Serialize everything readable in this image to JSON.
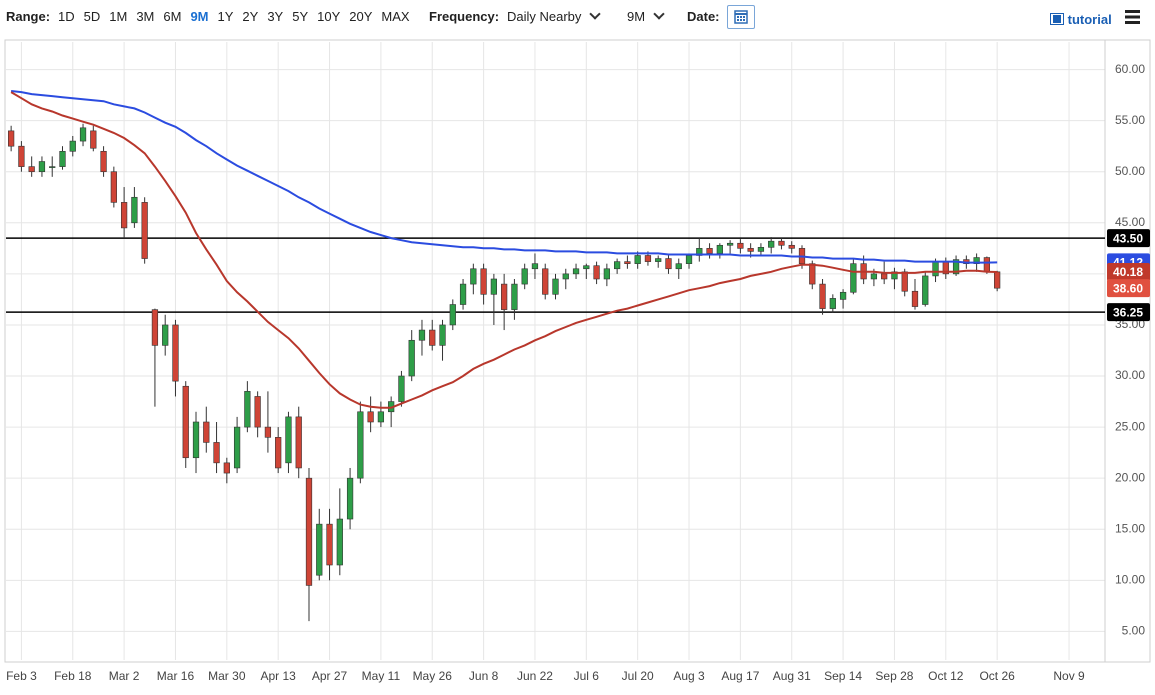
{
  "toolbar": {
    "range_label": "Range:",
    "ranges": [
      "1D",
      "5D",
      "1M",
      "3M",
      "6M",
      "9M",
      "1Y",
      "2Y",
      "3Y",
      "5Y",
      "10Y",
      "20Y",
      "MAX"
    ],
    "active_range": "9M",
    "frequency_label": "Frequency:",
    "frequency": "Daily Nearby",
    "period": "9M",
    "date_label": "Date:",
    "tutorial": "tutorial"
  },
  "chart_data": {
    "type": "candlestick",
    "categories": [
      null,
      "Feb 3",
      null,
      null,
      null,
      null,
      "Feb 18",
      null,
      null,
      null,
      null,
      "Mar 2",
      null,
      null,
      null,
      null,
      "Mar 16",
      null,
      null,
      null,
      null,
      "Mar 30",
      null,
      null,
      null,
      null,
      "Apr 13",
      null,
      null,
      null,
      null,
      "Apr 27",
      null,
      null,
      null,
      null,
      "May 11",
      null,
      null,
      null,
      null,
      "May 26",
      null,
      null,
      null,
      null,
      "Jun 8",
      null,
      null,
      null,
      null,
      "Jun 22",
      null,
      null,
      null,
      null,
      "Jul 6",
      null,
      null,
      null,
      null,
      "Jul 20",
      null,
      null,
      null,
      null,
      "Aug 3",
      null,
      null,
      null,
      null,
      "Aug 17",
      null,
      null,
      null,
      null,
      "Aug 31",
      null,
      null,
      null,
      null,
      "Sep 14",
      null,
      null,
      null,
      null,
      "Sep 28",
      null,
      null,
      null,
      null,
      "Oct 12",
      null,
      null,
      null,
      null,
      "Oct 26",
      null,
      null,
      null,
      null,
      null,
      null,
      "Nov 9",
      null,
      null,
      null
    ],
    "candles": {
      "up_color": "#2e9e48",
      "down_color": "#cf4436",
      "open": [
        54,
        52.5,
        50.5,
        50,
        50.5,
        50.5,
        52,
        53,
        54,
        52,
        50,
        47,
        45,
        47,
        36.5,
        33,
        35,
        29,
        22,
        25.5,
        23.5,
        21.5,
        21,
        25,
        28,
        25,
        24,
        21.5,
        26,
        20,
        10.5,
        15.5,
        11.5,
        16,
        20,
        26.5,
        25.5,
        26.5,
        27.5,
        30,
        33.5,
        34.5,
        33,
        35,
        37,
        39,
        40.5,
        38,
        39,
        36.5,
        39,
        40.5,
        40.5,
        38,
        39.5,
        40,
        40.5,
        40.8,
        39.5,
        40.5,
        41.2,
        41,
        41.8,
        41.2,
        41.5,
        40.5,
        41,
        41.8,
        42.5,
        42,
        42.8,
        43,
        42.5,
        42.2,
        42.6,
        43.2,
        42.8,
        42.5,
        41,
        39,
        36.6,
        37.5,
        38.2,
        41,
        39.5,
        40,
        39.5,
        40.2,
        38.3,
        37,
        39.8,
        41.2,
        40,
        41.4,
        41,
        41.6,
        40.2,
        null,
        null,
        null,
        null,
        null,
        null,
        null,
        null,
        null,
        null
      ],
      "high": [
        54.5,
        53,
        51.5,
        51.5,
        51.5,
        52.5,
        53.5,
        54.7,
        54.5,
        52.5,
        50.5,
        48.5,
        48.5,
        47.5,
        36.6,
        36,
        35.5,
        29.5,
        26.5,
        27,
        25.5,
        22,
        26,
        29.5,
        28.5,
        28.5,
        25,
        26.5,
        27,
        21,
        17,
        17,
        19,
        21,
        27.5,
        28,
        27.5,
        28,
        30.5,
        34.5,
        35.5,
        35.5,
        35.5,
        37.5,
        39.5,
        41,
        41,
        40,
        40,
        39.5,
        41,
        42,
        41,
        40,
        40.5,
        41,
        41,
        41.2,
        41,
        41.5,
        41.8,
        42.2,
        42.2,
        41.8,
        41.8,
        41.5,
        42,
        43.5,
        43,
        43,
        43.3,
        43.4,
        43,
        43,
        43.6,
        43.5,
        43.2,
        42.8,
        41.3,
        39.5,
        38,
        38.5,
        41.5,
        41.8,
        40.5,
        41.2,
        40.6,
        40.5,
        39.5,
        40.2,
        41.5,
        41.6,
        41.8,
        41.8,
        42,
        41.7,
        40.3,
        null,
        null,
        null,
        null,
        null,
        null,
        null,
        null,
        null,
        null
      ],
      "low": [
        52,
        50,
        49.5,
        49.5,
        49.5,
        50.2,
        51.5,
        52.5,
        52,
        49.5,
        46.5,
        43.5,
        44.5,
        41,
        27,
        32,
        28,
        21,
        20.5,
        22.5,
        20.5,
        19.5,
        20.5,
        24.5,
        24,
        22.5,
        20.5,
        20.5,
        20,
        6,
        10,
        10,
        10.5,
        15,
        19.5,
        24.5,
        25,
        25,
        27,
        29.5,
        32,
        32.5,
        31.5,
        34.5,
        36.5,
        38,
        37,
        35,
        34.5,
        35.5,
        38.5,
        39.5,
        37.5,
        37.5,
        38.5,
        39.5,
        39.5,
        39,
        38.8,
        40,
        40.5,
        40.5,
        40.8,
        40.6,
        40,
        39.5,
        40.5,
        41.2,
        41.5,
        41.5,
        42,
        42,
        41.6,
        41.8,
        42,
        42.4,
        42,
        40.5,
        38.5,
        36,
        36.2,
        36.6,
        38,
        39,
        38.8,
        39,
        38.5,
        37.8,
        36.5,
        36.8,
        39.2,
        39.5,
        39.8,
        40.5,
        40.2,
        40,
        38.3,
        null,
        null,
        null,
        null,
        null,
        null,
        null,
        null,
        null,
        null
      ],
      "close": [
        52.5,
        50.5,
        50,
        51,
        50.5,
        52,
        53,
        54.3,
        52.3,
        50,
        47,
        44.5,
        47.5,
        41.5,
        33,
        35,
        29.5,
        22,
        25.5,
        23.5,
        21.5,
        20.5,
        25,
        28.5,
        25,
        24,
        21,
        26,
        21,
        9.5,
        15.5,
        11.5,
        16,
        20,
        26.5,
        25.5,
        26.5,
        27.5,
        30,
        33.5,
        34.5,
        33,
        35,
        37,
        39,
        40.5,
        38,
        39.5,
        36.5,
        39,
        40.5,
        41,
        38,
        39.5,
        40,
        40.5,
        40.8,
        39.5,
        40.5,
        41.2,
        41,
        41.8,
        41.2,
        41.5,
        40.5,
        41,
        41.8,
        42.5,
        42,
        42.8,
        43,
        42.5,
        42.2,
        42.6,
        43.2,
        42.8,
        42.5,
        41,
        39,
        36.6,
        37.6,
        38.2,
        41,
        39.5,
        40,
        39.5,
        40.2,
        38.3,
        36.8,
        39.8,
        41.2,
        40,
        41.4,
        41,
        41.6,
        40.2,
        38.6,
        null,
        null,
        null,
        null,
        null,
        null,
        null,
        null,
        null,
        null
      ]
    },
    "series": [
      {
        "type": "line",
        "color": "#2b4ce0",
        "values": [
          57.9,
          57.8,
          57.6,
          57.5,
          57.4,
          57.3,
          57.2,
          57.1,
          57,
          56.9,
          56.6,
          56.4,
          56.2,
          55.8,
          55.3,
          54.8,
          54.4,
          53.8,
          53.1,
          52.5,
          51.8,
          51.2,
          50.6,
          50.1,
          49.6,
          49.1,
          48.6,
          48.1,
          47.5,
          47,
          46.4,
          45.9,
          45.4,
          44.9,
          44.5,
          44.1,
          43.8,
          43.5,
          43.3,
          43.1,
          43,
          42.9,
          42.8,
          42.7,
          42.6,
          42.6,
          42.5,
          42.5,
          42.4,
          42.4,
          42.3,
          42.3,
          42.3,
          42.2,
          42.2,
          42.2,
          42.1,
          42.1,
          42.1,
          42,
          42,
          42,
          42,
          42,
          41.9,
          41.9,
          41.9,
          41.9,
          41.9,
          41.9,
          41.9,
          41.8,
          41.8,
          41.8,
          41.8,
          41.8,
          41.7,
          41.7,
          41.6,
          41.6,
          41.5,
          41.5,
          41.5,
          41.4,
          41.4,
          41.3,
          41.3,
          41.3,
          41.2,
          41.2,
          41.2,
          41.2,
          41.2,
          41.1,
          41.1,
          41.1,
          41.12,
          null,
          null,
          null,
          null,
          null,
          null,
          null,
          null,
          null,
          null
        ]
      },
      {
        "type": "line",
        "color": "#b8372c",
        "values": [
          57.8,
          57.2,
          56.6,
          56.2,
          55.9,
          55.5,
          55.2,
          54.9,
          54.6,
          54.2,
          53.8,
          53.3,
          52.6,
          51.8,
          50.5,
          49.1,
          47.6,
          46,
          44,
          42.4,
          40.9,
          39.3,
          38.2,
          37.3,
          36.3,
          35.3,
          34.5,
          33.7,
          32.7,
          31.5,
          30.3,
          29.2,
          28.3,
          27.7,
          27.2,
          27,
          26.9,
          26.9,
          27.3,
          27.7,
          28.1,
          28.6,
          29,
          29.4,
          30,
          30.7,
          31.2,
          31.6,
          32.1,
          32.6,
          33,
          33.5,
          33.9,
          34.4,
          34.8,
          35.2,
          35.5,
          35.8,
          36.1,
          36.4,
          36.6,
          36.9,
          37.2,
          37.5,
          37.8,
          38.1,
          38.4,
          38.6,
          38.8,
          39.1,
          39.3,
          39.5,
          39.8,
          40,
          40.2,
          40.5,
          40.7,
          40.9,
          40.9,
          40.8,
          40.6,
          40.4,
          40.2,
          40.2,
          40.2,
          40.1,
          40.1,
          40.1,
          40.1,
          40.2,
          40.2,
          40.2,
          40.2,
          40.3,
          40.3,
          40.2,
          40.18,
          null,
          null,
          null,
          null,
          null,
          null,
          null,
          null,
          null,
          null
        ]
      }
    ],
    "levels": [
      {
        "value": 43.5,
        "label": "43.50"
      },
      {
        "value": 36.25,
        "label": "36.25"
      }
    ],
    "level_color": "#000000",
    "last_tags": [
      {
        "value": 41.12,
        "label": "41.12",
        "color": "#2b4ce0"
      },
      {
        "value": 40.18,
        "label": "40.18",
        "color": "#c0392b"
      },
      {
        "value": 38.6,
        "label": "38.60",
        "color": "#e0503f"
      }
    ],
    "ylim": [
      2.2,
      62.7
    ],
    "yticks": [
      {
        "value": 5,
        "label": "5.00"
      },
      {
        "value": 10,
        "label": "10.00"
      },
      {
        "value": 15,
        "label": "15.00"
      },
      {
        "value": 20,
        "label": "20.00"
      },
      {
        "value": 25,
        "label": "25.00"
      },
      {
        "value": 30,
        "label": "30.00"
      },
      {
        "value": 35,
        "label": "35.00"
      },
      {
        "value": 40,
        "label": "40.00"
      },
      {
        "value": 45,
        "label": "45.00"
      },
      {
        "value": 50,
        "label": "50.00"
      },
      {
        "value": 55,
        "label": "55.00"
      },
      {
        "value": 60,
        "label": "60.00"
      }
    ],
    "grid": true
  }
}
